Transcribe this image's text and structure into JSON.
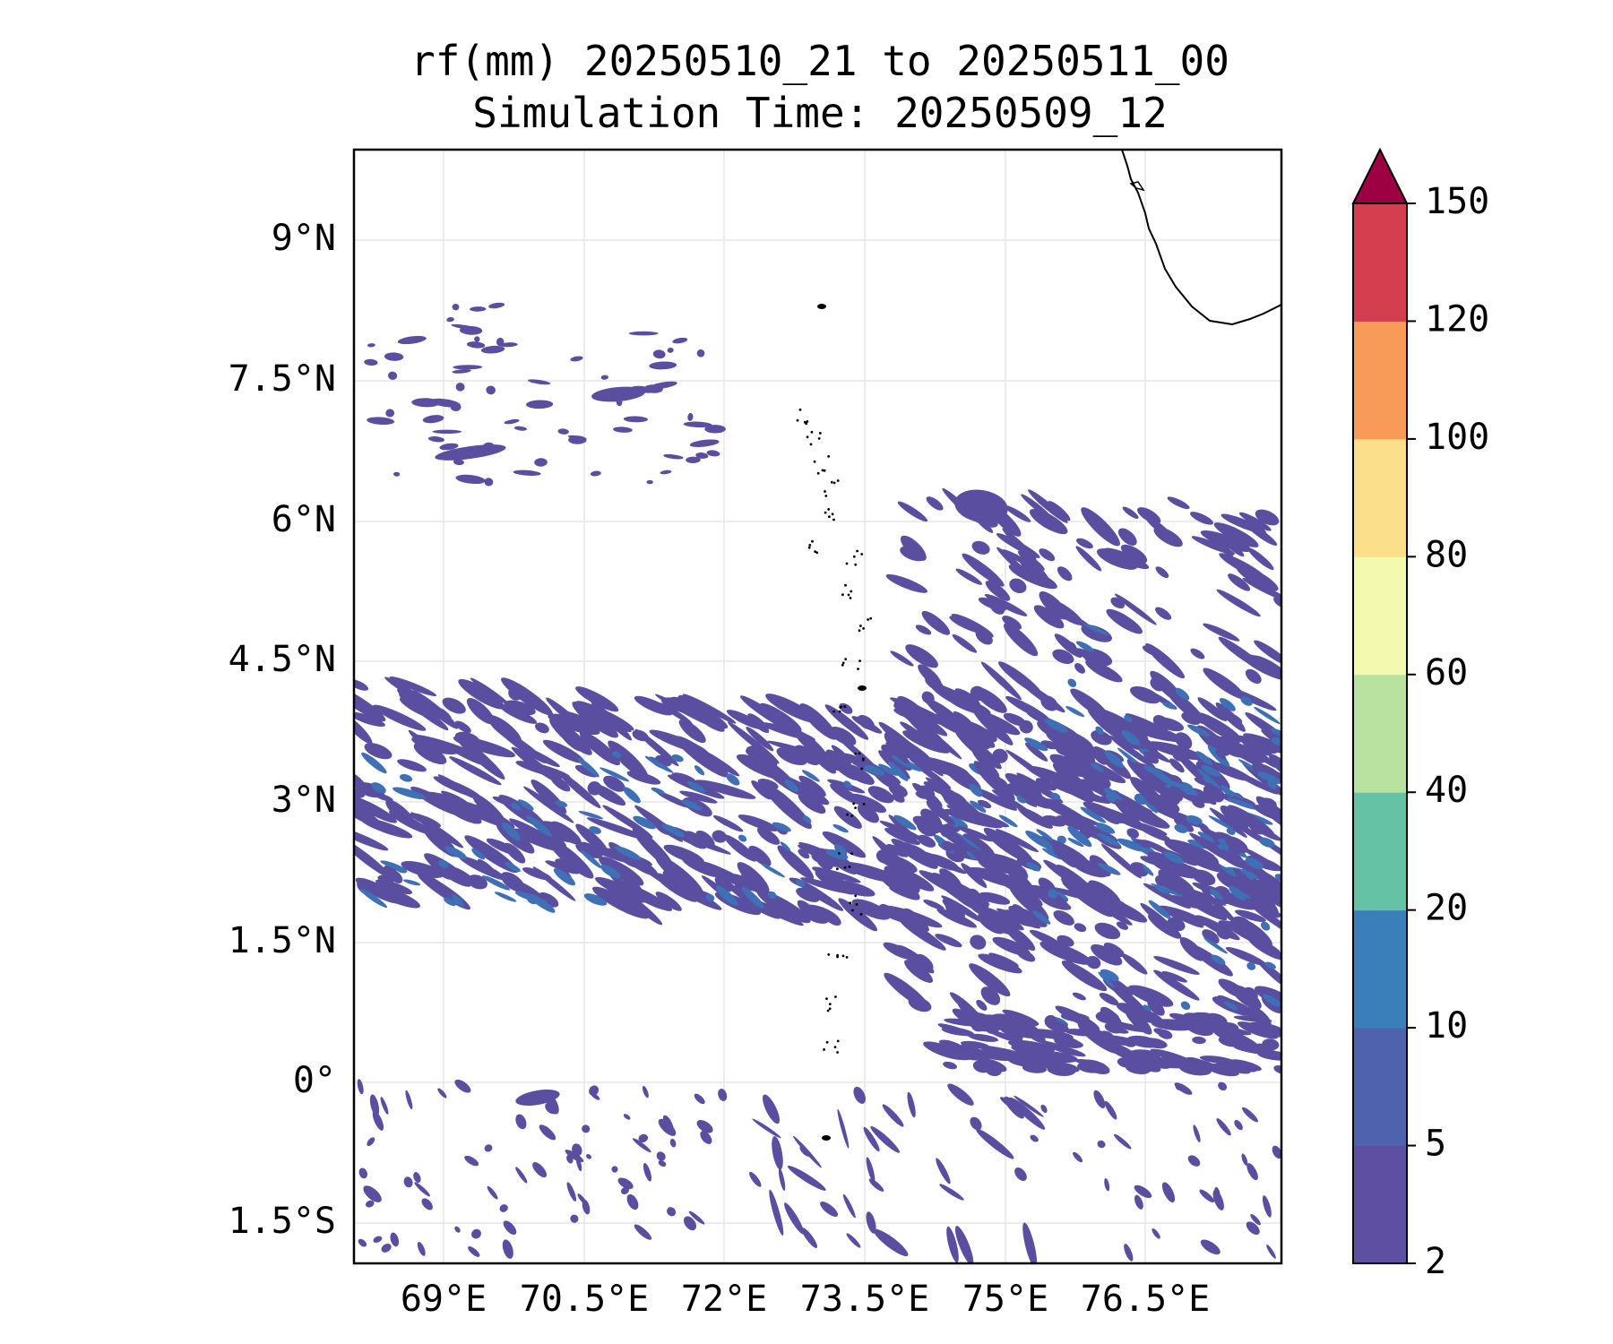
{
  "title": {
    "line1": "rf(mm) 20250510_21 to 20250511_00",
    "line2": "Simulation Time: 20250509_12"
  },
  "map": {
    "variable": "rf(mm)",
    "longitude_ticks": [
      "69°E",
      "70.5°E",
      "72°E",
      "73.5°E",
      "75°E",
      "76.5°E"
    ],
    "latitude_ticks": [
      "9°N",
      "7.5°N",
      "6°N",
      "4.5°N",
      "3°N",
      "1.5°N",
      "0°",
      "1.5°S"
    ],
    "extent": {
      "lon": [
        68.05,
        77.95
      ],
      "lat": [
        -1.9,
        9.95
      ]
    },
    "gridlines": true,
    "rain_color": "#5a4ea0",
    "rain_color_heavier": "#3f6fb5"
  },
  "colorbar": {
    "levels": [
      "2",
      "5",
      "10",
      "20",
      "40",
      "60",
      "80",
      "100",
      "120",
      "150"
    ],
    "colors": [
      "#5e4fa2",
      "#4e62ad",
      "#3a7fba",
      "#66c2a5",
      "#b9e2a0",
      "#f3fab0",
      "#fbdf8b",
      "#f89b59",
      "#d53e4f"
    ],
    "extend_color": "#9e0142",
    "extend": "max"
  }
}
